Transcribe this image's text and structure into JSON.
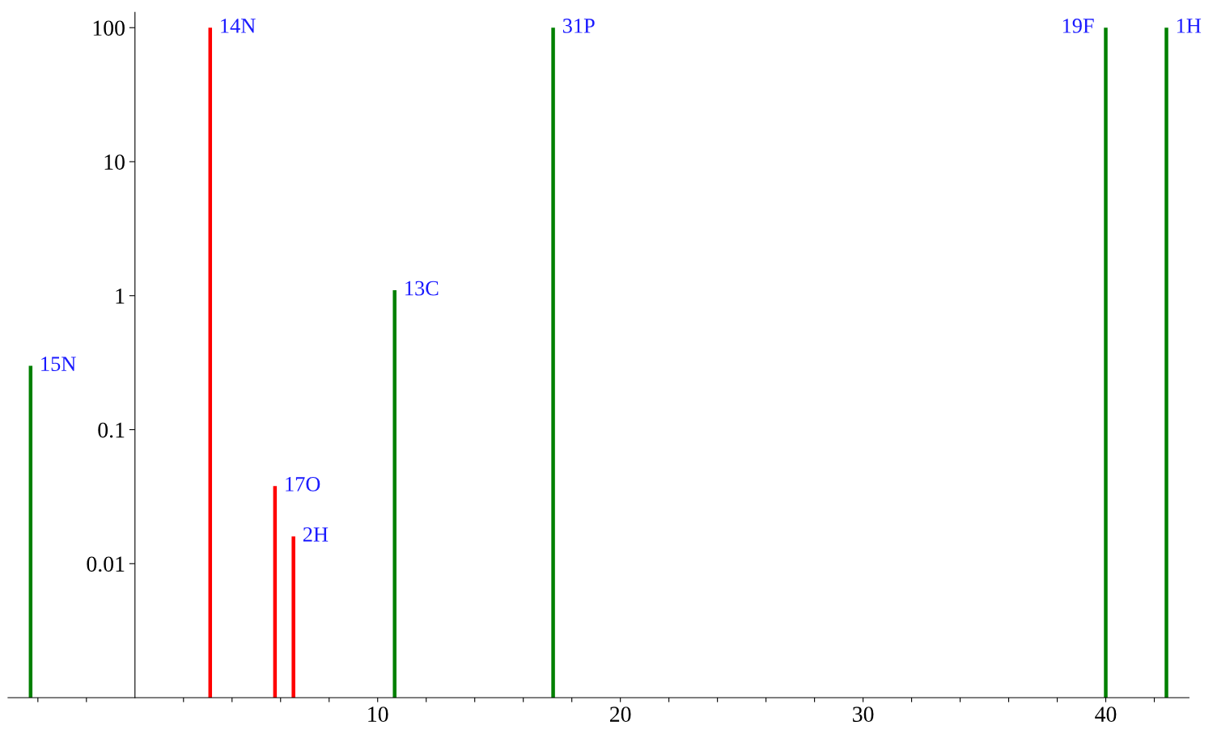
{
  "chart_data": {
    "type": "bar",
    "log": "y",
    "xlim": [
      -5.23,
      43.43
    ],
    "ylim": [
      0.001,
      130
    ],
    "xticks": [
      {
        "value": -4,
        "label": null
      },
      {
        "value": -2,
        "label": null
      },
      {
        "value": 2,
        "label": null
      },
      {
        "value": 4,
        "label": null
      },
      {
        "value": 6,
        "label": null
      },
      {
        "value": 8,
        "label": null
      },
      10,
      {
        "value": 12,
        "label": null
      },
      {
        "value": 14,
        "label": null
      },
      {
        "value": 16,
        "label": null
      },
      {
        "value": 18,
        "label": null
      },
      20,
      {
        "value": 22,
        "label": null
      },
      {
        "value": 24,
        "label": null
      },
      {
        "value": 26,
        "label": null
      },
      {
        "value": 28,
        "label": null
      },
      30,
      {
        "value": 32,
        "label": null
      },
      {
        "value": 34,
        "label": null
      },
      {
        "value": 36,
        "label": null
      },
      {
        "value": 38,
        "label": null
      },
      40,
      {
        "value": 42,
        "label": null
      }
    ],
    "yticks": [
      0.01,
      0.1,
      1,
      10,
      100
    ],
    "grid": false,
    "legend": false,
    "series": [
      {
        "color": "#008000",
        "x": [
          -4.3,
          10.7,
          17.23,
          40.0,
          42.5
        ],
        "values": [
          0.3,
          1.1,
          100,
          100,
          100
        ]
      },
      {
        "color": "#ff0000",
        "x": [
          3.1,
          5.77,
          6.53
        ],
        "values": [
          100,
          0.038,
          0.016
        ]
      }
    ],
    "annotations": [
      {
        "text": "15N",
        "x": -4.3,
        "y": 0.3
      },
      {
        "text": "14N",
        "x": 3.1,
        "y": 100
      },
      {
        "text": "17O",
        "x": 5.77,
        "y": 0.038
      },
      {
        "text": "2H",
        "x": 6.53,
        "y": 0.016
      },
      {
        "text": "13C",
        "x": 10.7,
        "y": 1.1
      },
      {
        "text": "31P",
        "x": 17.23,
        "y": 100
      },
      {
        "text": "19F",
        "x": 40.0,
        "y": 100
      },
      {
        "text": "1H",
        "x": 42.5,
        "y": 100
      }
    ]
  }
}
